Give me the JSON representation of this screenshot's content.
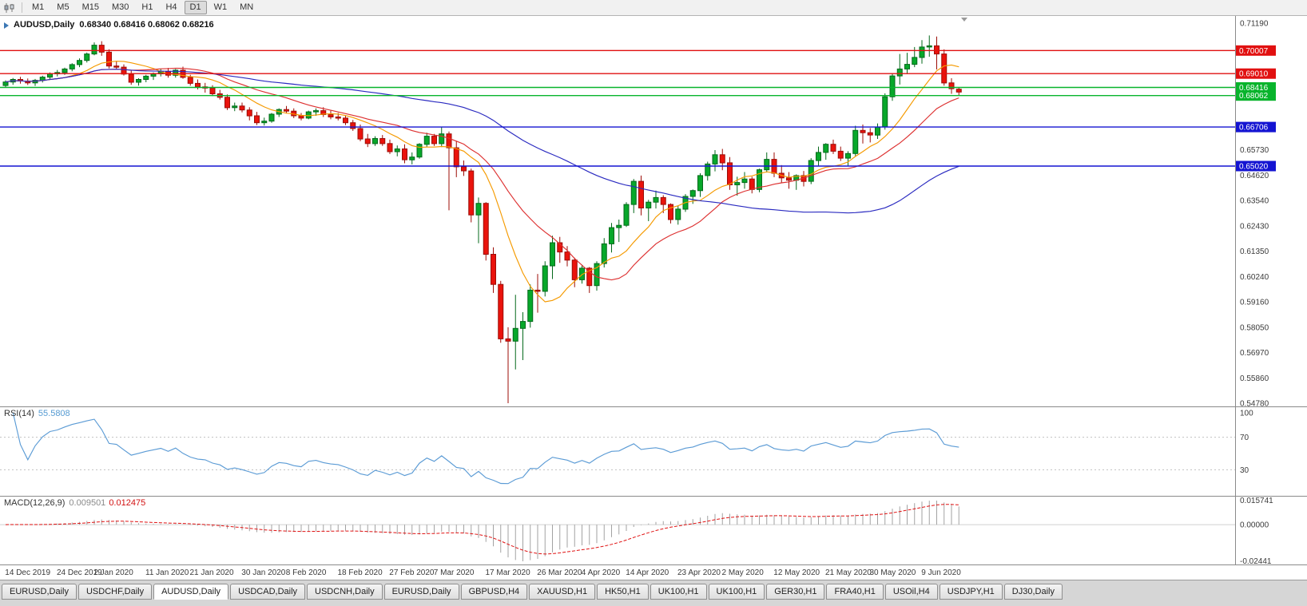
{
  "toolbar": {
    "periods": [
      "M1",
      "M5",
      "M15",
      "M30",
      "H1",
      "H4",
      "D1",
      "W1",
      "MN"
    ],
    "active_period": "D1"
  },
  "chart_header": {
    "symbol_period": "AUDUSD,Daily",
    "ohlc": "0.68340 0.68416 0.68062 0.68216"
  },
  "indicators": {
    "rsi_label": "RSI(14)",
    "rsi_value": "55.5808",
    "macd_label": "MACD(12,26,9)",
    "macd_main": "0.009501",
    "macd_signal": "0.012475"
  },
  "axes": {
    "price_ticks": [
      "0.71190",
      "0.65730",
      "0.64620",
      "0.63540",
      "0.62430",
      "0.61350",
      "0.60240",
      "0.59160",
      "0.58050",
      "0.56970",
      "0.55860",
      "0.54780"
    ],
    "rsi_ticks": [
      "100",
      "70",
      "30"
    ],
    "macd_ticks": [
      "0.015741",
      "0.00000",
      "-0.02441"
    ]
  },
  "hlines": [
    {
      "price": 0.70007,
      "label": "0.70007",
      "color": "#e11010"
    },
    {
      "price": 0.6901,
      "label": "0.69010",
      "color": "#e11010"
    },
    {
      "price": 0.68416,
      "label": "0.68416",
      "color": "#08b42c"
    },
    {
      "price": 0.68062,
      "label": "0.68062",
      "color": "#08b42c"
    },
    {
      "price": 0.66706,
      "label": "0.66706",
      "color": "#1414d2"
    },
    {
      "price": 0.6502,
      "label": "0.65020",
      "color": "#1414d2"
    }
  ],
  "tabs": {
    "items": [
      "EURUSD,Daily",
      "USDCHF,Daily",
      "AUDUSD,Daily",
      "USDCAD,Daily",
      "USDCNH,Daily",
      "EURUSD,Daily",
      "GBPUSD,H4",
      "XAUUSD,H1",
      "HK50,H1",
      "UK100,H1",
      "UK100,H1",
      "GER30,H1",
      "FRA40,H1",
      "USOil,H4",
      "USDJPY,H1",
      "DJ30,Daily"
    ],
    "active_index": 2
  },
  "chart_data": {
    "type": "candlestick",
    "symbol": "AUDUSD",
    "timeframe": "Daily",
    "title": "AUDUSD,Daily 0.68340 0.68416 0.68062 0.68216",
    "price_range": [
      0.5478,
      0.7119
    ],
    "moving_averages": [
      {
        "period": 9,
        "color": "#f59a00"
      },
      {
        "period": 18,
        "color": "#dd3030"
      },
      {
        "period": 55,
        "color": "#2a2ac0"
      }
    ],
    "rsi": {
      "period": 14,
      "levels": [
        70,
        30
      ],
      "color": "#5b9bd5",
      "last": 55.5808
    },
    "macd": {
      "fast": 12,
      "slow": 26,
      "signal": 9,
      "last_main": 0.009501,
      "last_signal": 0.012475,
      "max": 0.015741,
      "min": -0.02441
    },
    "candles": [
      [
        0.685,
        0.6872,
        0.6843,
        0.6865
      ],
      [
        0.6865,
        0.6882,
        0.6853,
        0.6876
      ],
      [
        0.6876,
        0.6887,
        0.6858,
        0.6869
      ],
      [
        0.6869,
        0.688,
        0.6852,
        0.6861
      ],
      [
        0.6861,
        0.6878,
        0.6848,
        0.6872
      ],
      [
        0.6872,
        0.6892,
        0.6863,
        0.6886
      ],
      [
        0.6886,
        0.6906,
        0.6876,
        0.69
      ],
      [
        0.69,
        0.6917,
        0.6889,
        0.6906
      ],
      [
        0.6906,
        0.6927,
        0.6896,
        0.6921
      ],
      [
        0.6921,
        0.6946,
        0.6911,
        0.694
      ],
      [
        0.694,
        0.6967,
        0.6929,
        0.6958
      ],
      [
        0.6958,
        0.6992,
        0.6949,
        0.6986
      ],
      [
        0.6986,
        0.7036,
        0.698,
        0.7024
      ],
      [
        0.7024,
        0.7041,
        0.6978,
        0.6994
      ],
      [
        0.6994,
        0.7006,
        0.6924,
        0.6934
      ],
      [
        0.6934,
        0.6956,
        0.6919,
        0.6929
      ],
      [
        0.6929,
        0.6941,
        0.6893,
        0.6899
      ],
      [
        0.6899,
        0.6916,
        0.6853,
        0.6864
      ],
      [
        0.6864,
        0.6881,
        0.6849,
        0.6876
      ],
      [
        0.6876,
        0.6896,
        0.6864,
        0.689
      ],
      [
        0.689,
        0.6906,
        0.6874,
        0.69
      ],
      [
        0.69,
        0.6921,
        0.6889,
        0.6911
      ],
      [
        0.6911,
        0.6926,
        0.6884,
        0.6894
      ],
      [
        0.6894,
        0.6921,
        0.6884,
        0.6916
      ],
      [
        0.6916,
        0.6931,
        0.6879,
        0.6885
      ],
      [
        0.6885,
        0.6896,
        0.6849,
        0.6859
      ],
      [
        0.6859,
        0.6876,
        0.6833,
        0.6844
      ],
      [
        0.6844,
        0.6861,
        0.6819,
        0.6839
      ],
      [
        0.6839,
        0.6851,
        0.6804,
        0.6814
      ],
      [
        0.6814,
        0.6831,
        0.6789,
        0.6799
      ],
      [
        0.6799,
        0.6811,
        0.6744,
        0.6754
      ],
      [
        0.6754,
        0.6776,
        0.6739,
        0.6761
      ],
      [
        0.6761,
        0.6776,
        0.6734,
        0.6744
      ],
      [
        0.6744,
        0.6756,
        0.6699,
        0.6719
      ],
      [
        0.6719,
        0.6736,
        0.6679,
        0.6689
      ],
      [
        0.6689,
        0.6711,
        0.6677,
        0.6696
      ],
      [
        0.6696,
        0.6731,
        0.6689,
        0.6726
      ],
      [
        0.6726,
        0.6751,
        0.6714,
        0.6746
      ],
      [
        0.6746,
        0.6761,
        0.6729,
        0.6739
      ],
      [
        0.6739,
        0.6751,
        0.6709,
        0.6719
      ],
      [
        0.6719,
        0.6731,
        0.6699,
        0.6709
      ],
      [
        0.6709,
        0.6741,
        0.6704,
        0.6736
      ],
      [
        0.6736,
        0.6751,
        0.6719,
        0.6741
      ],
      [
        0.6741,
        0.6756,
        0.6714,
        0.6724
      ],
      [
        0.6724,
        0.6741,
        0.6704,
        0.6714
      ],
      [
        0.6714,
        0.6731,
        0.6699,
        0.6709
      ],
      [
        0.6709,
        0.6721,
        0.6679,
        0.6689
      ],
      [
        0.6689,
        0.6701,
        0.6654,
        0.6664
      ],
      [
        0.6664,
        0.6681,
        0.6609,
        0.6619
      ],
      [
        0.6619,
        0.6641,
        0.6584,
        0.6599
      ],
      [
        0.6599,
        0.6631,
        0.6589,
        0.6621
      ],
      [
        0.6621,
        0.6636,
        0.6589,
        0.6599
      ],
      [
        0.6599,
        0.6616,
        0.6554,
        0.6564
      ],
      [
        0.6564,
        0.6591,
        0.6544,
        0.6576
      ],
      [
        0.6576,
        0.6596,
        0.6514,
        0.6529
      ],
      [
        0.6529,
        0.6561,
        0.6509,
        0.6541
      ],
      [
        0.6541,
        0.6601,
        0.6534,
        0.6596
      ],
      [
        0.6596,
        0.6646,
        0.6584,
        0.6631
      ],
      [
        0.6631,
        0.6641,
        0.6589,
        0.6599
      ],
      [
        0.6599,
        0.6671,
        0.6584,
        0.6641
      ],
      [
        0.6641,
        0.6651,
        0.6311,
        0.6581
      ],
      [
        0.6581,
        0.6611,
        0.6454,
        0.6499
      ],
      [
        0.6499,
        0.6526,
        0.6459,
        0.6481
      ],
      [
        0.6481,
        0.6491,
        0.6259,
        0.6291
      ],
      [
        0.6291,
        0.6366,
        0.6169,
        0.6341
      ],
      [
        0.6341,
        0.6346,
        0.6094,
        0.6121
      ],
      [
        0.6121,
        0.6151,
        0.5954,
        0.5991
      ],
      [
        0.5991,
        0.6006,
        0.5739,
        0.5756
      ],
      [
        0.5756,
        0.5806,
        0.5478,
        0.5746
      ],
      [
        0.5746,
        0.5946,
        0.5624,
        0.5801
      ],
      [
        0.5801,
        0.5871,
        0.5664,
        0.5831
      ],
      [
        0.5831,
        0.5991,
        0.5804,
        0.5966
      ],
      [
        0.5966,
        0.6036,
        0.5869,
        0.5961
      ],
      [
        0.5961,
        0.6091,
        0.5939,
        0.6071
      ],
      [
        0.6071,
        0.6201,
        0.6014,
        0.6171
      ],
      [
        0.6171,
        0.6196,
        0.6084,
        0.6131
      ],
      [
        0.6131,
        0.6156,
        0.6069,
        0.6096
      ],
      [
        0.6096,
        0.6106,
        0.5979,
        0.6011
      ],
      [
        0.6011,
        0.6076,
        0.5994,
        0.6061
      ],
      [
        0.6061,
        0.6066,
        0.5954,
        0.5986
      ],
      [
        0.5986,
        0.6091,
        0.5964,
        0.6081
      ],
      [
        0.6081,
        0.6191,
        0.6064,
        0.6166
      ],
      [
        0.6166,
        0.6256,
        0.6129,
        0.6236
      ],
      [
        0.6236,
        0.6271,
        0.6174,
        0.6246
      ],
      [
        0.6246,
        0.6346,
        0.6239,
        0.6336
      ],
      [
        0.6336,
        0.6446,
        0.6299,
        0.6436
      ],
      [
        0.6436,
        0.6461,
        0.6289,
        0.6321
      ],
      [
        0.6321,
        0.6356,
        0.6264,
        0.6346
      ],
      [
        0.6346,
        0.6396,
        0.6319,
        0.6366
      ],
      [
        0.6366,
        0.6376,
        0.6299,
        0.6336
      ],
      [
        0.6336,
        0.6341,
        0.6254,
        0.6271
      ],
      [
        0.6271,
        0.6331,
        0.6249,
        0.6316
      ],
      [
        0.6316,
        0.6381,
        0.6304,
        0.6371
      ],
      [
        0.6371,
        0.6401,
        0.6339,
        0.6396
      ],
      [
        0.6396,
        0.6471,
        0.6369,
        0.6461
      ],
      [
        0.6461,
        0.6521,
        0.6439,
        0.6511
      ],
      [
        0.6511,
        0.6571,
        0.6479,
        0.6551
      ],
      [
        0.6551,
        0.6576,
        0.6484,
        0.6516
      ],
      [
        0.6516,
        0.6541,
        0.6399,
        0.6421
      ],
      [
        0.6421,
        0.6456,
        0.6374,
        0.6431
      ],
      [
        0.6431,
        0.6476,
        0.6404,
        0.6446
      ],
      [
        0.6446,
        0.6456,
        0.6384,
        0.6401
      ],
      [
        0.6401,
        0.6491,
        0.6389,
        0.6486
      ],
      [
        0.6486,
        0.6561,
        0.6474,
        0.6531
      ],
      [
        0.6531,
        0.6561,
        0.6454,
        0.6471
      ],
      [
        0.6471,
        0.6506,
        0.6429,
        0.6451
      ],
      [
        0.6451,
        0.6476,
        0.6404,
        0.6441
      ],
      [
        0.6441,
        0.6466,
        0.6399,
        0.6461
      ],
      [
        0.6461,
        0.6481,
        0.6414,
        0.6436
      ],
      [
        0.6436,
        0.6536,
        0.6424,
        0.6526
      ],
      [
        0.6526,
        0.6586,
        0.6504,
        0.6561
      ],
      [
        0.6561,
        0.6601,
        0.6529,
        0.6596
      ],
      [
        0.6596,
        0.6616,
        0.6554,
        0.6566
      ],
      [
        0.6566,
        0.6586,
        0.6524,
        0.6536
      ],
      [
        0.6536,
        0.6566,
        0.6504,
        0.6556
      ],
      [
        0.6556,
        0.6676,
        0.6544,
        0.6656
      ],
      [
        0.6656,
        0.6681,
        0.6599,
        0.6646
      ],
      [
        0.6646,
        0.6666,
        0.6604,
        0.6636
      ],
      [
        0.6636,
        0.6686,
        0.6619,
        0.6671
      ],
      [
        0.6671,
        0.6816,
        0.6659,
        0.6801
      ],
      [
        0.6801,
        0.6901,
        0.6784,
        0.6891
      ],
      [
        0.6891,
        0.6986,
        0.6854,
        0.6921
      ],
      [
        0.6921,
        0.6991,
        0.6899,
        0.6941
      ],
      [
        0.6941,
        0.7016,
        0.6929,
        0.6971
      ],
      [
        0.6971,
        0.7046,
        0.6944,
        0.7016
      ],
      [
        0.7016,
        0.7066,
        0.6974,
        0.7021
      ],
      [
        0.7021,
        0.7061,
        0.6919,
        0.6986
      ],
      [
        0.6986,
        0.7006,
        0.6849,
        0.6861
      ],
      [
        0.6861,
        0.6881,
        0.6814,
        0.6836
      ],
      [
        0.6834,
        0.68416,
        0.68062,
        0.68216
      ]
    ],
    "date_labels": [
      {
        "text": "14 Dec 2019",
        "bar": 1
      },
      {
        "text": "24 Dec 2019",
        "bar": 8
      },
      {
        "text": "2 Jan 2020",
        "bar": 13
      },
      {
        "text": "11 Jan 2020",
        "bar": 20
      },
      {
        "text": "21 Jan 2020",
        "bar": 26
      },
      {
        "text": "30 Jan 2020",
        "bar": 33
      },
      {
        "text": "8 Feb 2020",
        "bar": 39
      },
      {
        "text": "18 Feb 2020",
        "bar": 46
      },
      {
        "text": "27 Feb 2020",
        "bar": 53
      },
      {
        "text": "7 Mar 2020",
        "bar": 59
      },
      {
        "text": "17 Mar 2020",
        "bar": 66
      },
      {
        "text": "26 Mar 2020",
        "bar": 73
      },
      {
        "text": "4 Apr 2020",
        "bar": 79
      },
      {
        "text": "14 Apr 2020",
        "bar": 85
      },
      {
        "text": "23 Apr 2020",
        "bar": 92
      },
      {
        "text": "2 May 2020",
        "bar": 98
      },
      {
        "text": "12 May 2020",
        "bar": 105
      },
      {
        "text": "21 May 2020",
        "bar": 112
      },
      {
        "text": "30 May 2020",
        "bar": 118
      },
      {
        "text": "9 Jun 2020",
        "bar": 125
      }
    ]
  }
}
